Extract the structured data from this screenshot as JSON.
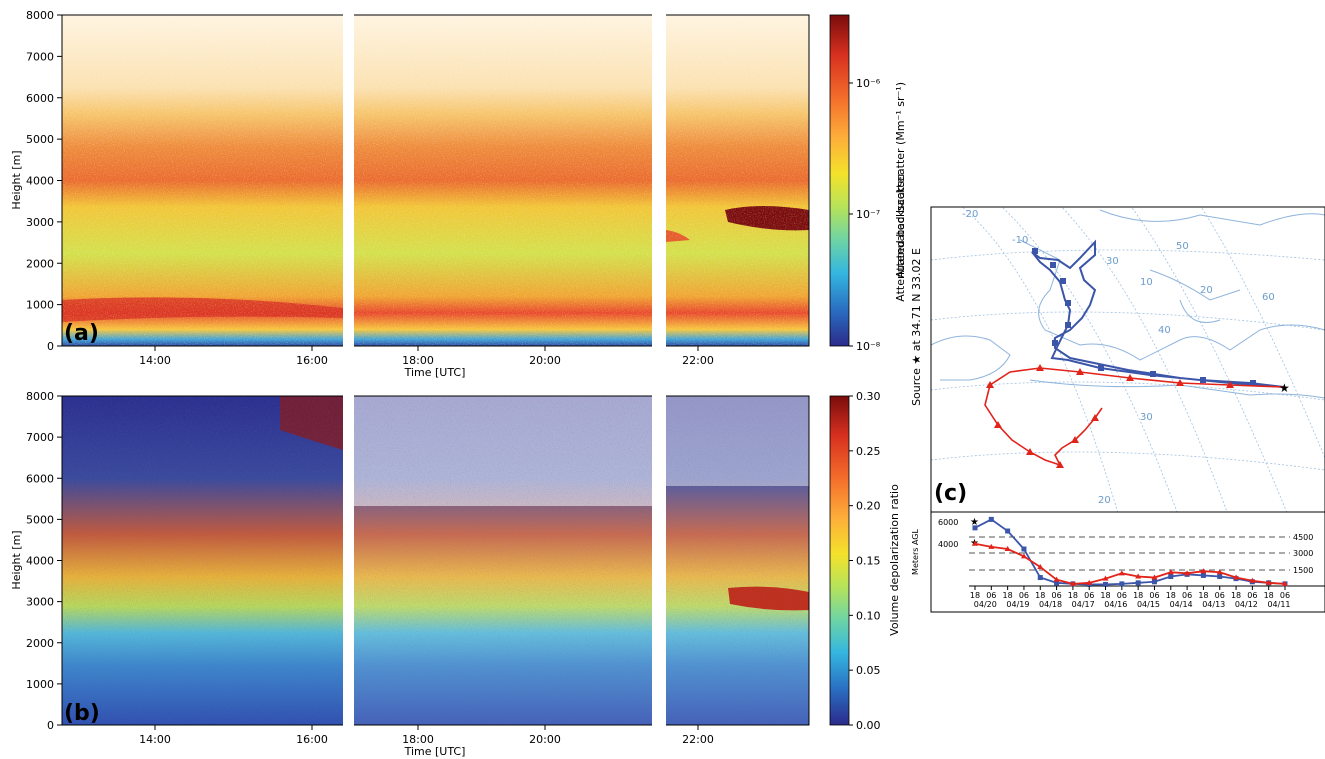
{
  "chart_data": [
    {
      "type": "heatmap",
      "panel_label": "(a)",
      "xlabel": "Time [UTC]",
      "ylabel": "Height [m]",
      "x_ticks": [
        "14:00",
        "16:00",
        "18:00",
        "20:00",
        "22:00"
      ],
      "y_ticks": [
        "0",
        "1000",
        "2000",
        "3000",
        "4000",
        "5000",
        "6000",
        "7000",
        "8000"
      ],
      "ylim": [
        0,
        8000
      ],
      "colorbar": {
        "label": "Attenuated backscatter (Mm⁻¹ sr⁻¹)",
        "scale": "log",
        "ticks": [
          "10⁻⁶",
          "10⁻⁷",
          "10⁻⁸"
        ],
        "colors": [
          "#7a0c0c",
          "#d7301f",
          "#f46d2b",
          "#fdae3a",
          "#f4e22b",
          "#b6e35a",
          "#6ed4a5",
          "#34b6e0",
          "#2a6fc2",
          "#2b2a8a"
        ]
      },
      "gaps": [
        "16:30",
        "21:30"
      ]
    },
    {
      "type": "heatmap",
      "panel_label": "(b)",
      "xlabel": "Time [UTC]",
      "ylabel": "Height [m]",
      "x_ticks": [
        "14:00",
        "16:00",
        "18:00",
        "20:00",
        "22:00"
      ],
      "y_ticks": [
        "0",
        "1000",
        "2000",
        "3000",
        "4000",
        "5000",
        "6000",
        "7000",
        "8000"
      ],
      "ylim": [
        0,
        8000
      ],
      "colorbar": {
        "label": "Volume depolarization ratio",
        "scale": "linear",
        "ticks": [
          "0.30",
          "0.25",
          "0.20",
          "0.15",
          "0.10",
          "0.05",
          "0.00"
        ],
        "range": [
          0,
          0.3
        ],
        "colors": [
          "#7a0c0c",
          "#d7301f",
          "#f46d2b",
          "#fdae3a",
          "#f4e22b",
          "#b6e35a",
          "#6ed4a5",
          "#34b6e0",
          "#2a6fc2",
          "#2b2a8a"
        ]
      },
      "gaps": [
        "16:30",
        "21:30"
      ]
    },
    {
      "type": "line",
      "panel_label": "(c)",
      "side_label_1": "Source ★ at 34.71 N 33.02 E",
      "side_label_2": "Attenuated backscatter",
      "map_labels": [
        "-20",
        "-10",
        "10",
        "20",
        "30",
        "40",
        "50",
        "60",
        "30",
        "20"
      ],
      "ylabel": "Meters AGL",
      "y_ticks": [
        "6000",
        "4000"
      ],
      "levels": [
        "4500",
        "3000",
        "1500"
      ],
      "x_ticks_hours": [
        "18",
        "06",
        "18",
        "06",
        "18",
        "06",
        "18",
        "06",
        "18",
        "06",
        "18",
        "06",
        "18",
        "06",
        "18",
        "06",
        "18",
        "06",
        "18",
        "06"
      ],
      "x_ticks_dates": [
        "04/20",
        "04/19",
        "04/18",
        "04/17",
        "04/16",
        "04/15",
        "04/14",
        "04/13",
        "04/12",
        "04/11"
      ],
      "series": [
        {
          "name": "",
          "color": "#3b55a8",
          "values": [
            5500,
            6300,
            5200,
            3500,
            800,
            300,
            200,
            150,
            150,
            200,
            300,
            400,
            900,
            1100,
            1000,
            900,
            700,
            400,
            300,
            200
          ]
        },
        {
          "name": "",
          "color": "#e2231a",
          "values": [
            4000,
            3700,
            3500,
            2800,
            1800,
            600,
            200,
            300,
            700,
            1200,
            900,
            800,
            1300,
            1200,
            1400,
            1300,
            800,
            500,
            300,
            200
          ]
        }
      ]
    }
  ]
}
